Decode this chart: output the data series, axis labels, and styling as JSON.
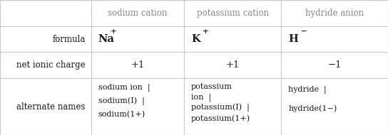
{
  "col_headers": [
    "",
    "sodium cation",
    "potassium cation",
    "hydride anion"
  ],
  "row_labels": [
    "formula",
    "net ionic charge",
    "alternate names"
  ],
  "formula_row": [
    {
      "base": "Na",
      "sup": "+"
    },
    {
      "base": "K",
      "sup": "+"
    },
    {
      "base": "H",
      "sup": "−"
    }
  ],
  "charge_row": [
    "+1",
    "+1",
    "−1"
  ],
  "alt_names": [
    [
      "sodium ion  |",
      "sodium(I)  |",
      "sodium(1+)"
    ],
    [
      "potassium",
      "ion  |",
      "potassium(I)  |",
      "potassium(1+)"
    ],
    [
      "hydride  |",
      "hydride(1−)"
    ]
  ],
  "bg_color": "#ffffff",
  "line_color": "#c8c8c8",
  "text_color": "#1a1a1a",
  "header_color": "#888888",
  "font_size": 8.5
}
